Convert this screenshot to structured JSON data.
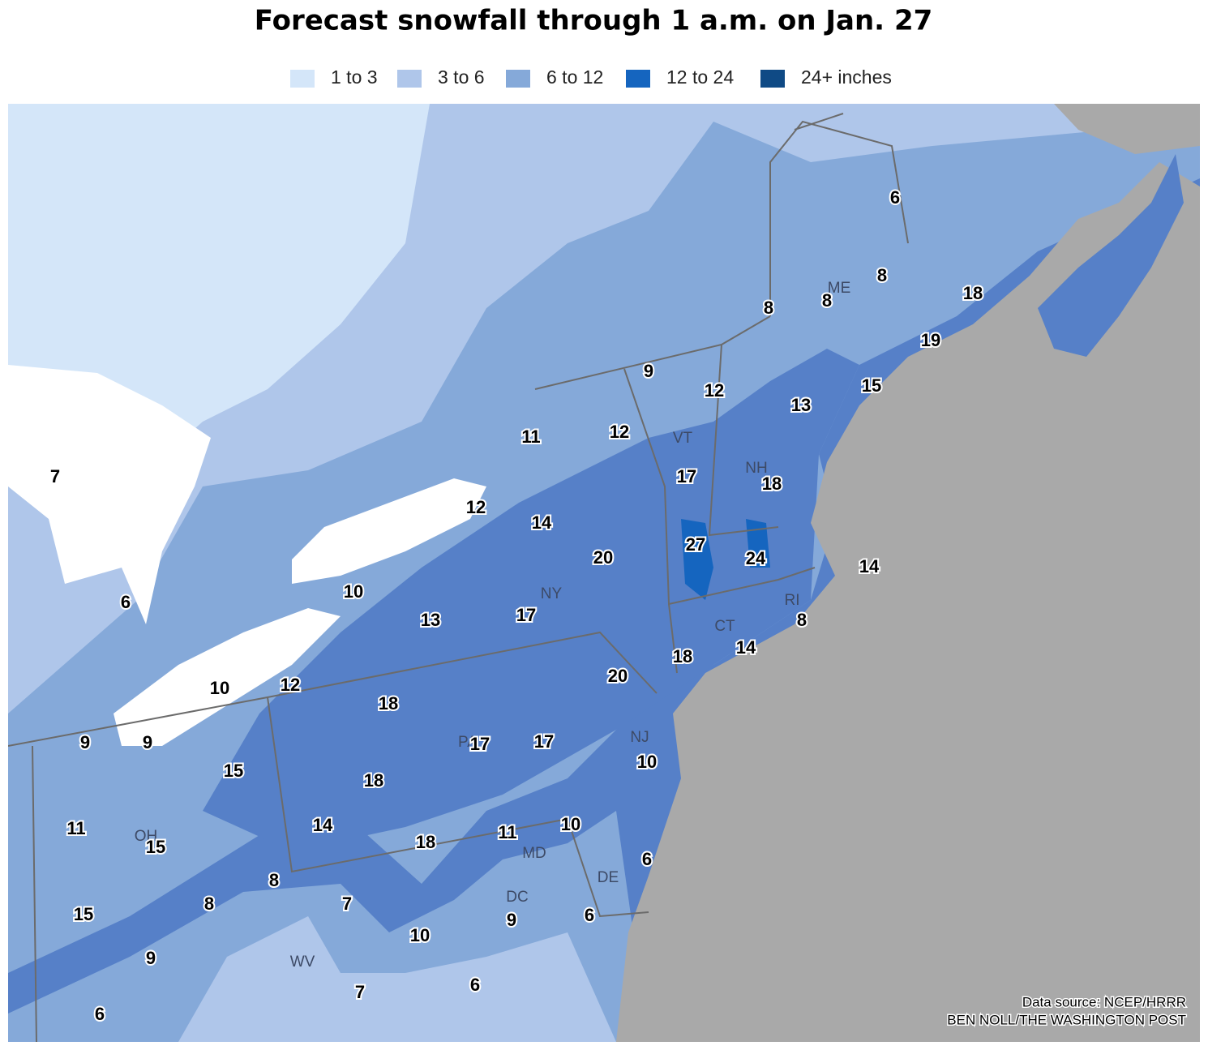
{
  "title": "Forecast snowfall through 1 a.m. on Jan. 27",
  "legend": [
    {
      "label": "1 to 3",
      "color": "#d4e6f9"
    },
    {
      "label": "3 to 6",
      "color": "#afc6ea"
    },
    {
      "label": "6 to 12",
      "color": "#85a9d9"
    },
    {
      "label": "12 to 24",
      "color": "#1565bf"
    },
    {
      "label": "24+ inches",
      "color": "#0f4a85"
    }
  ],
  "state_labels": [
    "ME",
    "VT",
    "NH",
    "NY",
    "CT",
    "RI",
    "NJ",
    "PA",
    "OH",
    "MD",
    "DE",
    "DC",
    "WV"
  ],
  "snowfall_labels": [
    6,
    8,
    8,
    8,
    18,
    19,
    15,
    13,
    12,
    9,
    11,
    12,
    17,
    18,
    7,
    12,
    14,
    20,
    27,
    24,
    14,
    6,
    10,
    13,
    17,
    8,
    14,
    18,
    20,
    10,
    12,
    18,
    9,
    9,
    17,
    17,
    10,
    15,
    18,
    14,
    11,
    15,
    18,
    11,
    10,
    6,
    8,
    8,
    7,
    15,
    9,
    6,
    10,
    9,
    7,
    6,
    6
  ],
  "source": [
    "Data source: NCEP/HRRR",
    "BEN NOLL/THE WASHINGTON POST"
  ]
}
